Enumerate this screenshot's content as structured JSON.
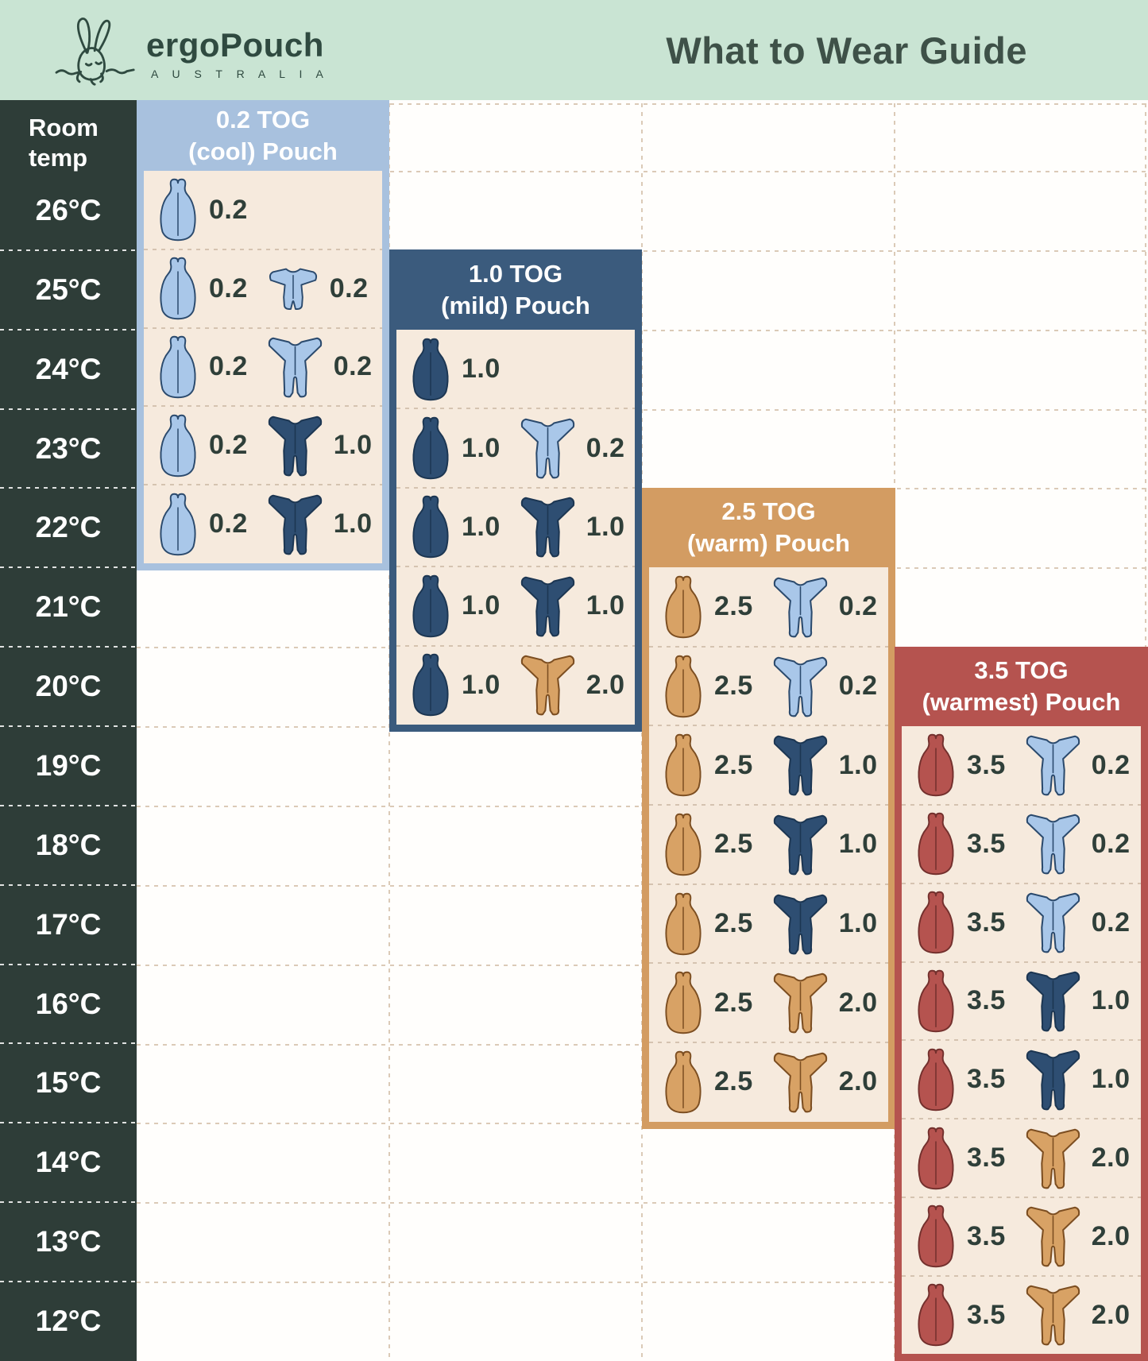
{
  "header": {
    "brand": "ergoPouch",
    "brand_sub": "A U S T R A L I A",
    "title": "What to Wear Guide"
  },
  "temp_column": {
    "header": "Room\ntemp",
    "temps": [
      "26°C",
      "25°C",
      "24°C",
      "23°C",
      "22°C",
      "21°C",
      "20°C",
      "19°C",
      "18°C",
      "17°C",
      "16°C",
      "15°C",
      "14°C",
      "13°C",
      "12°C"
    ]
  },
  "colors": {
    "mint": "#c9e4d3",
    "brand_text": "#2f4a40",
    "title_text": "#3e5148",
    "temp_column_bg": "#2e3d38",
    "panel_body": "#f6eadd",
    "label_text": "#2f3f39",
    "grid_dots": "#dbcab7",
    "icons": {
      "lightblue": {
        "fill": "#a9c7e9",
        "stroke": "#2b4a6d"
      },
      "navy": {
        "fill": "#2e4e72",
        "stroke": "#1c3652"
      },
      "tan": {
        "fill": "#d8a265",
        "stroke": "#7c4e21"
      },
      "red": {
        "fill": "#b5534f",
        "stroke": "#73302d"
      },
      "white": {
        "fill": "#ffffff",
        "stroke": "#424d48"
      }
    }
  },
  "panels": [
    {
      "id": "cool",
      "title_line1": "0.2 TOG",
      "title_line2": "(cool) Pouch",
      "color": "#a8c1de",
      "rows": [
        {
          "temp": "26°C",
          "items": [
            {
              "icon": "pouch",
              "color": "lightblue",
              "label": "0.2"
            }
          ]
        },
        {
          "temp": "25°C",
          "items": [
            {
              "icon": "pouch",
              "color": "lightblue",
              "label": "0.2"
            },
            {
              "icon": "romper",
              "color": "lightblue",
              "label": "0.2"
            }
          ]
        },
        {
          "temp": "24°C",
          "items": [
            {
              "icon": "pouch",
              "color": "lightblue",
              "label": "0.2"
            },
            {
              "icon": "suit",
              "color": "lightblue",
              "label": "0.2"
            }
          ]
        },
        {
          "temp": "23°C",
          "items": [
            {
              "icon": "pouch",
              "color": "lightblue",
              "label": "0.2"
            },
            {
              "icon": "suit",
              "color": "navy",
              "label": "1.0"
            }
          ]
        },
        {
          "temp": "22°C",
          "items": [
            {
              "icon": "pouch",
              "color": "lightblue",
              "label": "0.2"
            },
            {
              "icon": "suit",
              "color": "navy",
              "label": "1.0"
            },
            {
              "icon": "singlet",
              "color": "white",
              "label": ""
            }
          ]
        }
      ]
    },
    {
      "id": "mild",
      "title_line1": "1.0 TOG",
      "title_line2": "(mild) Pouch",
      "color": "#3b5b7d",
      "rows": [
        {
          "temp": "24°C",
          "items": [
            {
              "icon": "pouch",
              "color": "navy",
              "label": "1.0"
            }
          ]
        },
        {
          "temp": "23°C",
          "items": [
            {
              "icon": "pouch",
              "color": "navy",
              "label": "1.0"
            },
            {
              "icon": "suit",
              "color": "lightblue",
              "label": "0.2"
            }
          ]
        },
        {
          "temp": "22°C",
          "items": [
            {
              "icon": "pouch",
              "color": "navy",
              "label": "1.0"
            },
            {
              "icon": "suit",
              "color": "navy",
              "label": "1.0"
            }
          ]
        },
        {
          "temp": "21°C",
          "items": [
            {
              "icon": "pouch",
              "color": "navy",
              "label": "1.0"
            },
            {
              "icon": "suit",
              "color": "navy",
              "label": "1.0"
            },
            {
              "icon": "singlet",
              "color": "white",
              "label": ""
            }
          ]
        },
        {
          "temp": "20°C",
          "items": [
            {
              "icon": "pouch",
              "color": "navy",
              "label": "1.0"
            },
            {
              "icon": "suit",
              "color": "tan",
              "label": "2.0"
            }
          ]
        }
      ]
    },
    {
      "id": "warm",
      "title_line1": "2.5 TOG",
      "title_line2": "(warm) Pouch",
      "color": "#d39c62",
      "rows": [
        {
          "temp": "21°C",
          "items": [
            {
              "icon": "pouch",
              "color": "tan",
              "label": "2.5"
            },
            {
              "icon": "suit",
              "color": "lightblue",
              "label": "0.2"
            }
          ]
        },
        {
          "temp": "20°C",
          "items": [
            {
              "icon": "pouch",
              "color": "tan",
              "label": "2.5"
            },
            {
              "icon": "suit",
              "color": "lightblue",
              "label": "0.2"
            },
            {
              "icon": "singlet",
              "color": "white",
              "label": ""
            }
          ]
        },
        {
          "temp": "19°C",
          "items": [
            {
              "icon": "pouch",
              "color": "tan",
              "label": "2.5"
            },
            {
              "icon": "suit",
              "color": "navy",
              "label": "1.0"
            }
          ]
        },
        {
          "temp": "18°C",
          "items": [
            {
              "icon": "pouch",
              "color": "tan",
              "label": "2.5"
            },
            {
              "icon": "suit",
              "color": "navy",
              "label": "1.0"
            },
            {
              "icon": "singlet",
              "color": "white",
              "label": ""
            }
          ]
        },
        {
          "temp": "17°C",
          "items": [
            {
              "icon": "pouch",
              "color": "tan",
              "label": "2.5"
            },
            {
              "icon": "suit",
              "color": "navy",
              "label": "1.0"
            },
            {
              "icon": "singlet",
              "color": "white",
              "label": ""
            }
          ]
        },
        {
          "temp": "16°C",
          "items": [
            {
              "icon": "pouch",
              "color": "tan",
              "label": "2.5"
            },
            {
              "icon": "suit",
              "color": "tan",
              "label": "2.0"
            }
          ]
        },
        {
          "temp": "15°C",
          "items": [
            {
              "icon": "pouch",
              "color": "tan",
              "label": "2.5"
            },
            {
              "icon": "suit",
              "color": "tan",
              "label": "2.0"
            },
            {
              "icon": "singlet",
              "color": "white",
              "label": ""
            }
          ]
        }
      ]
    },
    {
      "id": "warmest",
      "title_line1": "3.5 TOG",
      "title_line2": "(warmest) Pouch",
      "color": "#b5534f",
      "rows": [
        {
          "temp": "19°C",
          "items": [
            {
              "icon": "pouch",
              "color": "red",
              "label": "3.5"
            },
            {
              "icon": "suit",
              "color": "lightblue",
              "label": "0.2"
            }
          ]
        },
        {
          "temp": "18°C",
          "items": [
            {
              "icon": "pouch",
              "color": "red",
              "label": "3.5"
            },
            {
              "icon": "suit",
              "color": "lightblue",
              "label": "0.2"
            }
          ]
        },
        {
          "temp": "17°C",
          "items": [
            {
              "icon": "pouch",
              "color": "red",
              "label": "3.5"
            },
            {
              "icon": "suit",
              "color": "lightblue",
              "label": "0.2"
            },
            {
              "icon": "singlet",
              "color": "white",
              "label": ""
            }
          ]
        },
        {
          "temp": "16°C",
          "items": [
            {
              "icon": "pouch",
              "color": "red",
              "label": "3.5"
            },
            {
              "icon": "suit",
              "color": "navy",
              "label": "1.0"
            }
          ]
        },
        {
          "temp": "15°C",
          "items": [
            {
              "icon": "pouch",
              "color": "red",
              "label": "3.5"
            },
            {
              "icon": "suit",
              "color": "navy",
              "label": "1.0"
            },
            {
              "icon": "singlet",
              "color": "white",
              "label": ""
            }
          ]
        },
        {
          "temp": "14°C",
          "items": [
            {
              "icon": "pouch",
              "color": "red",
              "label": "3.5"
            },
            {
              "icon": "suit",
              "color": "tan",
              "label": "2.0"
            }
          ]
        },
        {
          "temp": "13°C",
          "items": [
            {
              "icon": "pouch",
              "color": "red",
              "label": "3.5"
            },
            {
              "icon": "suit",
              "color": "tan",
              "label": "2.0"
            },
            {
              "icon": "singlet",
              "color": "white",
              "label": ""
            }
          ]
        },
        {
          "temp": "12°C",
          "items": [
            {
              "icon": "pouch",
              "color": "red",
              "label": "3.5"
            },
            {
              "icon": "suit",
              "color": "tan",
              "label": "2.0"
            },
            {
              "icon": "singlet",
              "color": "white",
              "label": ""
            }
          ]
        }
      ]
    }
  ]
}
